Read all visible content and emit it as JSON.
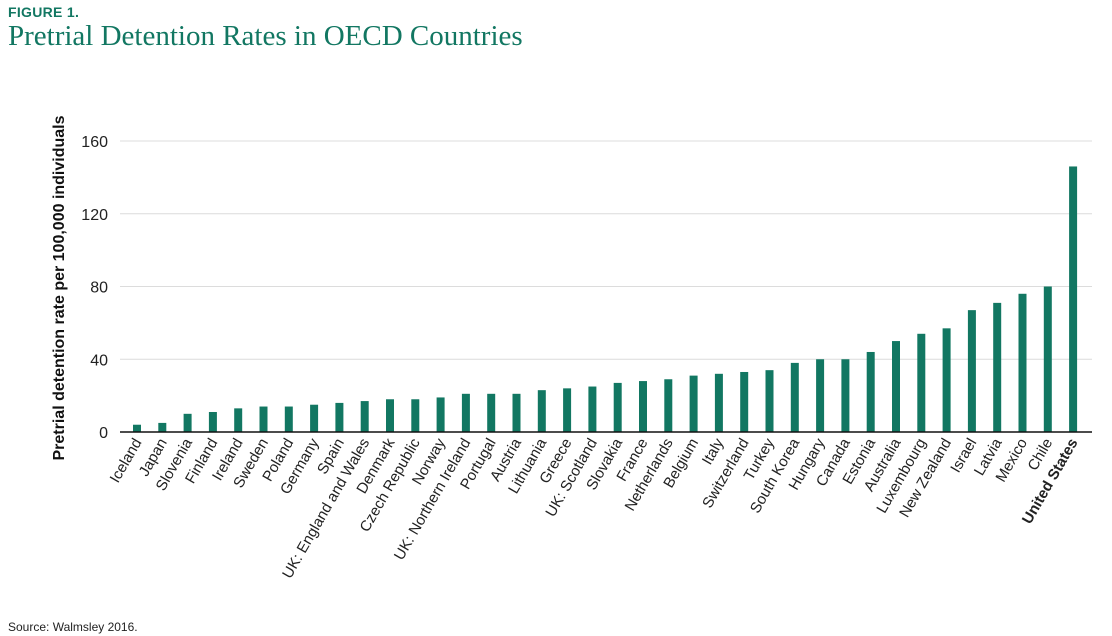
{
  "figure_label": "FIGURE 1.",
  "source": "Source: Walmsley 2016.",
  "chart_data": {
    "type": "bar",
    "title": "Pretrial Detention Rates in OECD Countries",
    "xlabel": "",
    "ylabel": "Pretrial detention rate per 100,000 individuals",
    "ylim": [
      0,
      160
    ],
    "yticks": [
      0,
      40,
      80,
      120,
      160
    ],
    "grid": true,
    "bar_color": "#127762",
    "highlight_category": "United States",
    "categories": [
      "Iceland",
      "Japan",
      "Slovenia",
      "Finland",
      "Ireland",
      "Sweden",
      "Poland",
      "Germany",
      "Spain",
      "UK: England and Wales",
      "Denmark",
      "Czech Republic",
      "Norway",
      "UK: Northern Ireland",
      "Portugal",
      "Austria",
      "Lithuania",
      "Greece",
      "UK: Scotland",
      "Slovakia",
      "France",
      "Netherlands",
      "Belgium",
      "Italy",
      "Switzerland",
      "Turkey",
      "South Korea",
      "Hungary",
      "Canada",
      "Estonia",
      "Australia",
      "Luxembourg",
      "New Zealand",
      "Israel",
      "Latvia",
      "Mexico",
      "Chile",
      "United States"
    ],
    "values": [
      4,
      5,
      10,
      11,
      13,
      14,
      14,
      15,
      16,
      17,
      18,
      18,
      19,
      21,
      21,
      21,
      23,
      24,
      25,
      27,
      28,
      29,
      31,
      32,
      33,
      34,
      38,
      40,
      40,
      44,
      50,
      54,
      57,
      67,
      71,
      76,
      80,
      146
    ]
  }
}
